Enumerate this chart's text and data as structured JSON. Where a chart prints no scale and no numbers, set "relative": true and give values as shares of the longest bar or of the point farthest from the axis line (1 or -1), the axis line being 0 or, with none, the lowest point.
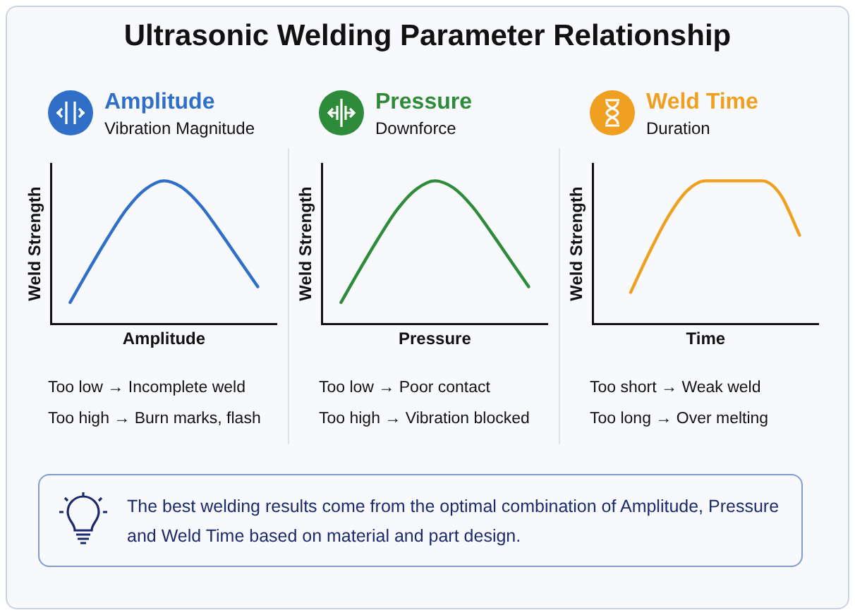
{
  "chart_data": [
    {
      "type": "other",
      "title": "Ultrasonic Welding Parameter Relationship",
      "annotations": [
        "The best welding results come from the optimal combination of Amplitude, Pressure and Weld Time based on material and part design."
      ]
    },
    {
      "type": "line",
      "title": "Amplitude",
      "subtitle": "Vibration Magnitude",
      "xlabel": "Amplitude",
      "ylabel": "Weld Strength",
      "relative": true,
      "categories": [
        null,
        null,
        null,
        null,
        null,
        null,
        null,
        null,
        null,
        null,
        null,
        null,
        null
      ],
      "series": [
        {
          "color": "#2f6fc8",
          "values": [
            null,
            0.15,
            0.38,
            0.6,
            0.8,
            0.94,
            1,
            0.95,
            0.82,
            0.64,
            0.45,
            0.26,
            null
          ]
        }
      ],
      "annotations": [
        "Too low → Incomplete weld",
        "Too high → Burn marks, flash"
      ]
    },
    {
      "type": "line",
      "title": "Pressure",
      "subtitle": "Downforce",
      "xlabel": "Pressure",
      "ylabel": "Weld Strength",
      "relative": true,
      "categories": [
        null,
        null,
        null,
        null,
        null,
        null,
        null,
        null,
        null,
        null,
        null,
        null,
        null
      ],
      "series": [
        {
          "color": "#2e8b3a",
          "values": [
            null,
            0.15,
            0.38,
            0.6,
            0.8,
            0.94,
            1,
            0.95,
            0.82,
            0.64,
            0.45,
            0.26,
            null
          ]
        }
      ],
      "annotations": [
        "Too low → Poor contact",
        "Too high → Vibration blocked"
      ]
    },
    {
      "type": "line",
      "title": "Weld Time",
      "subtitle": "Duration",
      "xlabel": "Time",
      "ylabel": "Weld Strength",
      "relative": true,
      "categories": [
        null,
        null,
        null,
        null,
        null,
        null,
        null,
        null,
        null,
        null,
        null,
        null,
        null
      ],
      "series": [
        {
          "color": "#f0a020",
          "values": [
            null,
            null,
            0.22,
            0.5,
            0.75,
            0.93,
            1,
            1,
            1,
            1,
            0.9,
            0.62,
            null
          ]
        }
      ],
      "annotations": [
        "Too short → Weak weld",
        "Too long → Over melting"
      ]
    }
  ]
}
